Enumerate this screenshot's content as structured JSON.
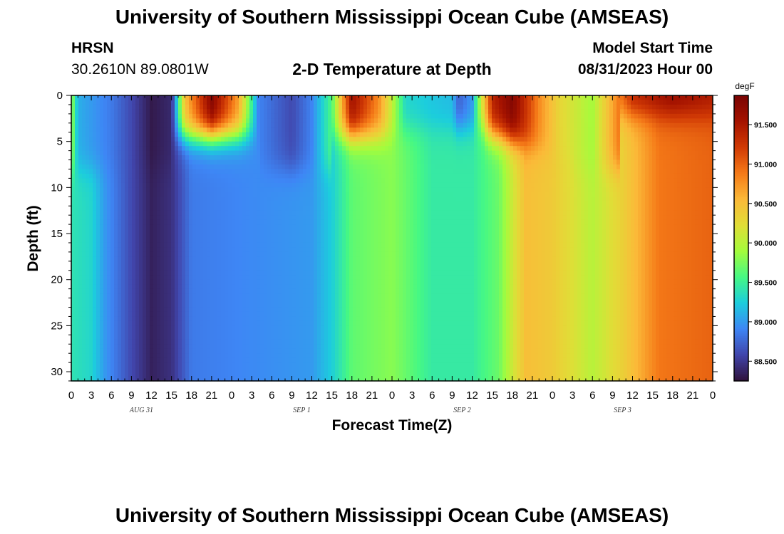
{
  "header": {
    "title": "University of Southern Mississippi Ocean Cube (AMSEAS)",
    "station": "HRSN",
    "coords": "30.2610N  89.0801W",
    "model_start_label": "Model Start Time",
    "model_start_value": "08/31/2023 Hour 00"
  },
  "footer": {
    "title": "University of Southern Mississippi Ocean Cube (AMSEAS)"
  },
  "chart_data": {
    "type": "heatmap",
    "title": "2-D Temperature at Depth",
    "xlabel": "Forecast Time(Z)",
    "ylabel": "Depth (ft)",
    "x_tick_labels": [
      "0",
      "3",
      "6",
      "9",
      "12",
      "15",
      "18",
      "21",
      "0",
      "3",
      "6",
      "9",
      "12",
      "15",
      "18",
      "21",
      "0",
      "3",
      "6",
      "9",
      "12",
      "15",
      "18",
      "21",
      "0",
      "3",
      "6",
      "9",
      "12",
      "15",
      "18",
      "21",
      "0"
    ],
    "date_labels": [
      "AUG 31",
      "SEP 1",
      "SEP 2",
      "SEP 3"
    ],
    "x_range_hours": [
      0,
      96
    ],
    "y_ticks": [
      0,
      5,
      10,
      15,
      20,
      25,
      30
    ],
    "y_range_ft": [
      0,
      31
    ],
    "colorbar": {
      "unit": "degF",
      "range": [
        88.25,
        91.87
      ],
      "ticks": [
        "88.500",
        "89.000",
        "89.500",
        "90.000",
        "90.500",
        "91.000",
        "91.500"
      ],
      "colors": [
        "#30123b",
        "#4145ab",
        "#3e86f5",
        "#1ccddd",
        "#46f884",
        "#a4fc3c",
        "#e1dd37",
        "#fbb938",
        "#f57a18",
        "#d13a05",
        "#a51300",
        "#7a0403"
      ]
    },
    "surface_temperature_degF": [
      [
        0,
        89.9
      ],
      [
        1,
        89.1
      ],
      [
        3,
        89.0
      ],
      [
        6,
        88.85
      ],
      [
        9,
        88.6
      ],
      [
        12,
        88.3
      ],
      [
        15,
        88.4
      ],
      [
        17,
        90.5
      ],
      [
        21,
        91.8
      ],
      [
        25,
        90.7
      ],
      [
        28,
        88.9
      ],
      [
        33,
        88.6
      ],
      [
        36,
        88.9
      ],
      [
        39,
        89.6
      ],
      [
        42,
        91.6
      ],
      [
        46,
        90.8
      ],
      [
        50,
        89.3
      ],
      [
        54,
        89.2
      ],
      [
        57,
        89.15
      ],
      [
        58,
        88.7
      ],
      [
        60,
        89.0
      ],
      [
        63,
        91.4
      ],
      [
        66,
        91.8
      ],
      [
        70,
        90.8
      ],
      [
        73,
        90.3
      ],
      [
        78,
        89.9
      ],
      [
        84,
        91.4
      ],
      [
        90,
        91.7
      ],
      [
        96,
        91.5
      ]
    ],
    "bottom_temperature_degF": [
      [
        0,
        89.4
      ],
      [
        3,
        89.3
      ],
      [
        5,
        89.0
      ],
      [
        9,
        88.6
      ],
      [
        12,
        88.35
      ],
      [
        15,
        88.45
      ],
      [
        18,
        88.85
      ],
      [
        24,
        88.9
      ],
      [
        36,
        89.0
      ],
      [
        39,
        89.25
      ],
      [
        42,
        89.65
      ],
      [
        48,
        89.8
      ],
      [
        54,
        89.45
      ],
      [
        60,
        89.45
      ],
      [
        64,
        89.7
      ],
      [
        68,
        90.5
      ],
      [
        72,
        90.4
      ],
      [
        78,
        90.0
      ],
      [
        82,
        90.3
      ],
      [
        88,
        90.9
      ],
      [
        96,
        91.0
      ]
    ]
  }
}
